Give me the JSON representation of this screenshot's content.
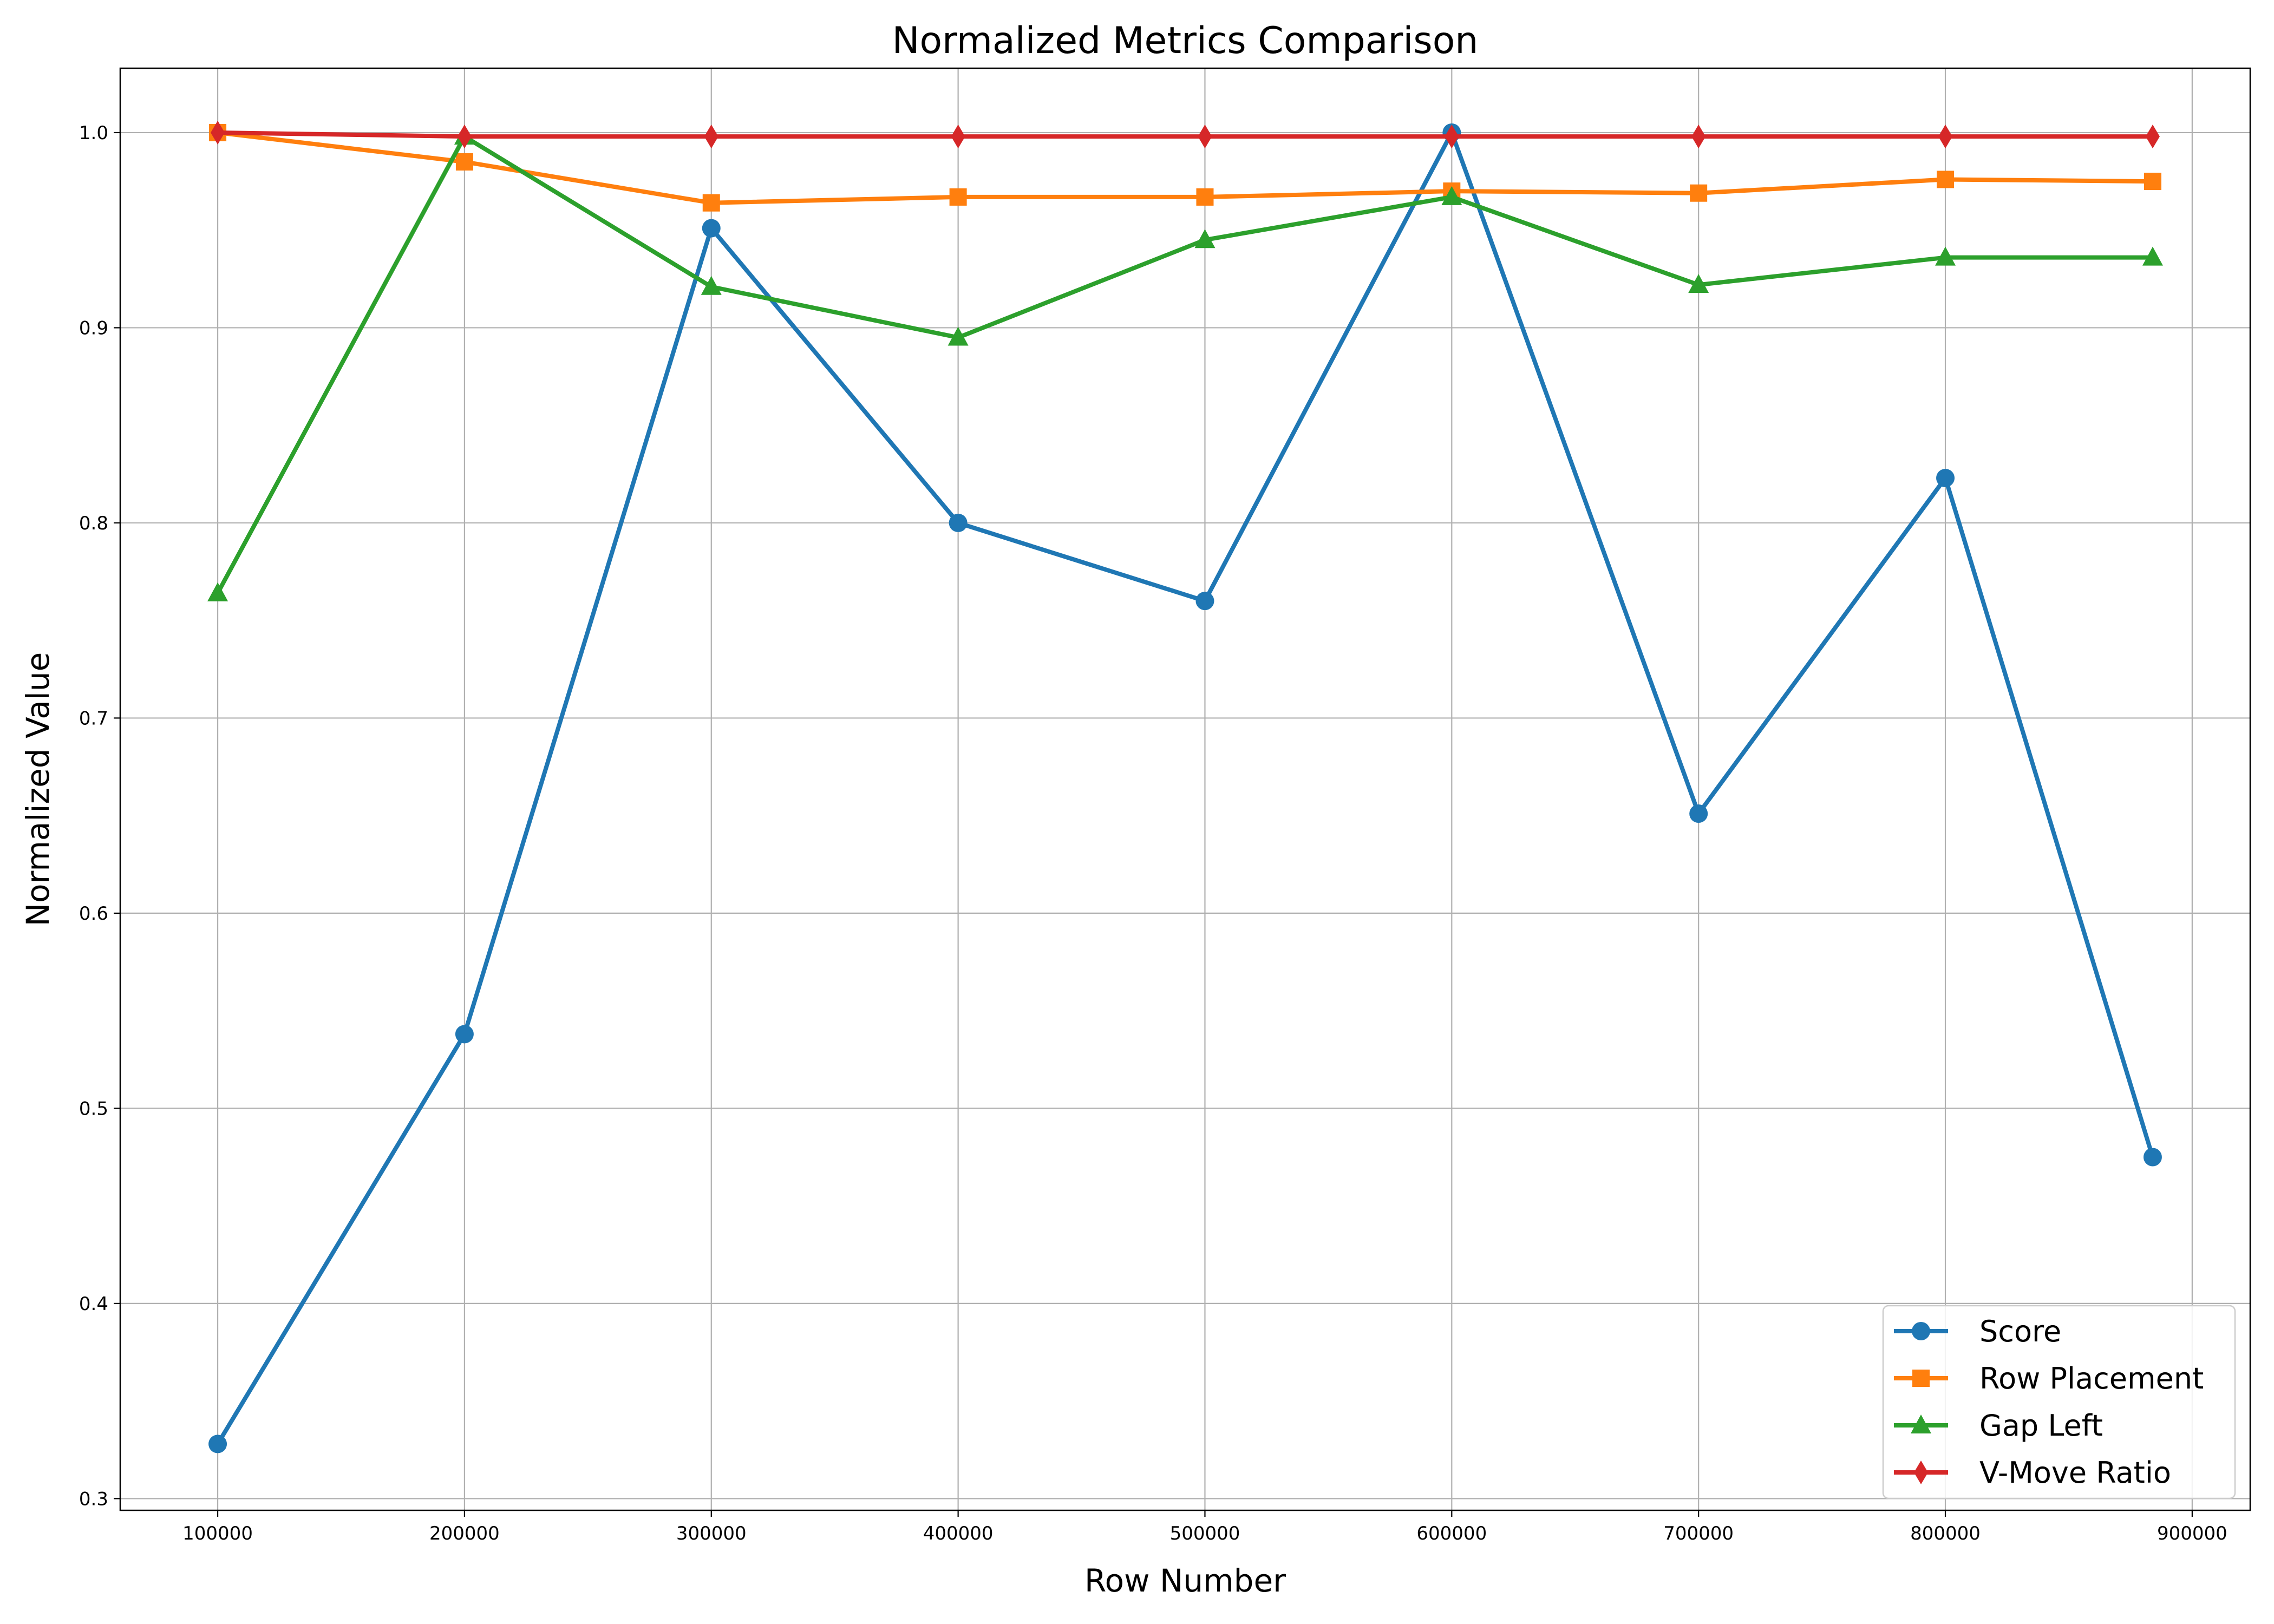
{
  "chart_data": {
    "type": "line",
    "title": "Normalized Metrics Comparison",
    "xlabel": "Row Number",
    "ylabel": "Normalized Value",
    "xlim": [
      60500,
      923500
    ],
    "ylim": [
      0.294,
      1.033
    ],
    "xticks": [
      100000,
      200000,
      300000,
      400000,
      500000,
      600000,
      700000,
      800000,
      900000
    ],
    "xtick_labels": [
      "100000",
      "200000",
      "300000",
      "400000",
      "500000",
      "600000",
      "700000",
      "800000",
      "900000"
    ],
    "yticks": [
      0.3,
      0.4,
      0.5,
      0.6,
      0.7,
      0.8,
      0.9,
      1.0
    ],
    "ytick_labels": [
      "0.3",
      "0.4",
      "0.5",
      "0.6",
      "0.7",
      "0.8",
      "0.9",
      "1.0"
    ],
    "grid": true,
    "legend_position": "bottom-right",
    "x": [
      100000,
      200000,
      300000,
      400000,
      500000,
      600000,
      700000,
      800000,
      884000
    ],
    "series": [
      {
        "name": "Score",
        "color": "#1f77b4",
        "marker": "circle",
        "values": [
          0.328,
          0.538,
          0.951,
          0.8,
          0.76,
          1.0,
          0.651,
          0.823,
          0.475
        ]
      },
      {
        "name": "Row Placement",
        "color": "#ff7f0e",
        "marker": "square",
        "values": [
          1.0,
          0.985,
          0.964,
          0.967,
          0.967,
          0.97,
          0.969,
          0.976,
          0.975
        ]
      },
      {
        "name": "Gap Left",
        "color": "#2ca02c",
        "marker": "triangle",
        "values": [
          0.764,
          0.998,
          0.921,
          0.895,
          0.945,
          0.967,
          0.922,
          0.936,
          0.936
        ]
      },
      {
        "name": "V-Move Ratio",
        "color": "#d62728",
        "marker": "diamond",
        "values": [
          1.0,
          0.998,
          0.998,
          0.998,
          0.998,
          0.998,
          0.998,
          0.998,
          0.998
        ]
      }
    ]
  }
}
